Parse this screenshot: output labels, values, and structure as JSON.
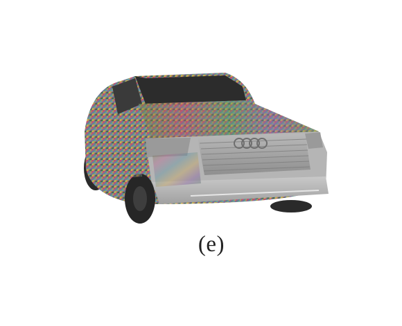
{
  "figure": {
    "caption": "(e)"
  }
}
